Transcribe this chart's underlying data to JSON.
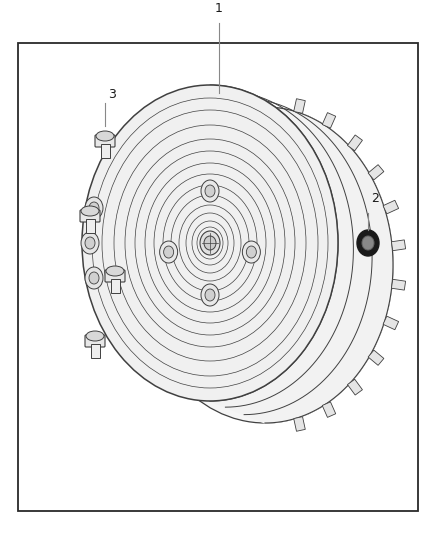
{
  "bg_color": "#ffffff",
  "border_color": "#2a2a2a",
  "line_color": "#404040",
  "label_color": "#1a1a1a",
  "fill_light": "#f8f8f8",
  "fill_mid": "#e8e8e8",
  "fill_side": "#f0f0f0",
  "figsize": [
    4.38,
    5.33
  ],
  "dpi": 100
}
